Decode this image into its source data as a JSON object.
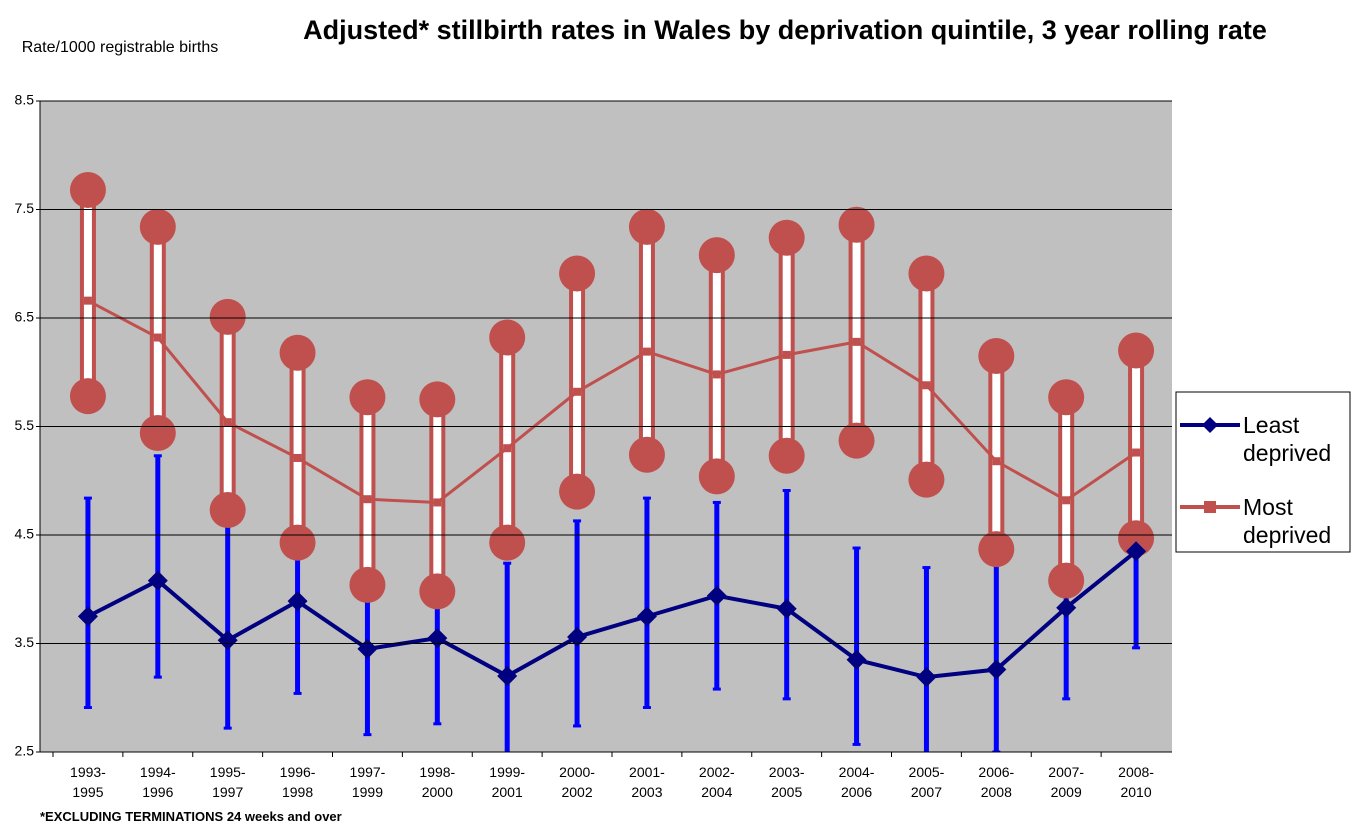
{
  "chart_data": {
    "type": "line",
    "title": "Adjusted* stillbirth rates in Wales by deprivation quintile, 3 year rolling rate",
    "y_label": "Rate/1000 registrable births",
    "footnote": "*EXCLUDING TERMINATIONS 24 weeks and over",
    "categories": [
      "1993-1995",
      "1994-1996",
      "1995-1997",
      "1996-1998",
      "1997-1999",
      "1998-2000",
      "1999-2001",
      "2000-2002",
      "2001-2003",
      "2002-2004",
      "2003-2005",
      "2004-2006",
      "2005-2007",
      "2006-2008",
      "2007-2009",
      "2008-2010"
    ],
    "ylim": [
      2.5,
      8.5
    ],
    "yticks": [
      2.5,
      3.5,
      4.5,
      5.5,
      6.5,
      7.5,
      8.5
    ],
    "grid": true,
    "legend": "right",
    "series": [
      {
        "name": "Least deprived",
        "color": "#000080",
        "error_color": "#0000ff",
        "marker": "diamond",
        "values": [
          3.75,
          4.08,
          3.53,
          3.89,
          3.45,
          3.55,
          3.2,
          3.56,
          3.75,
          3.94,
          3.82,
          3.35,
          3.19,
          3.26,
          3.83,
          4.35
        ],
        "lower": [
          2.91,
          3.19,
          2.72,
          3.04,
          2.66,
          2.76,
          2.2,
          2.74,
          2.91,
          3.08,
          2.99,
          2.57,
          2.2,
          2.5,
          2.99,
          3.46
        ],
        "upper": [
          4.84,
          5.23,
          4.6,
          5.01,
          4.5,
          4.64,
          4.24,
          4.63,
          4.84,
          4.8,
          4.91,
          4.38,
          4.2,
          4.3,
          4.9,
          5.5
        ]
      },
      {
        "name": "Most deprived",
        "color": "#c0504d",
        "error_color": "#c0504d",
        "marker": "square",
        "values": [
          6.66,
          6.32,
          5.54,
          5.21,
          4.83,
          4.8,
          5.3,
          5.82,
          6.19,
          5.98,
          6.16,
          6.28,
          5.88,
          5.18,
          4.82,
          5.26
        ],
        "lower": [
          5.78,
          5.44,
          4.73,
          4.43,
          4.04,
          3.98,
          4.43,
          4.9,
          5.24,
          5.04,
          5.23,
          5.37,
          5.01,
          4.37,
          4.08,
          4.47
        ],
        "upper": [
          7.68,
          7.34,
          6.51,
          6.18,
          5.77,
          5.75,
          6.32,
          6.91,
          7.34,
          7.08,
          7.24,
          7.36,
          6.91,
          6.15,
          5.77,
          6.2
        ]
      }
    ]
  }
}
